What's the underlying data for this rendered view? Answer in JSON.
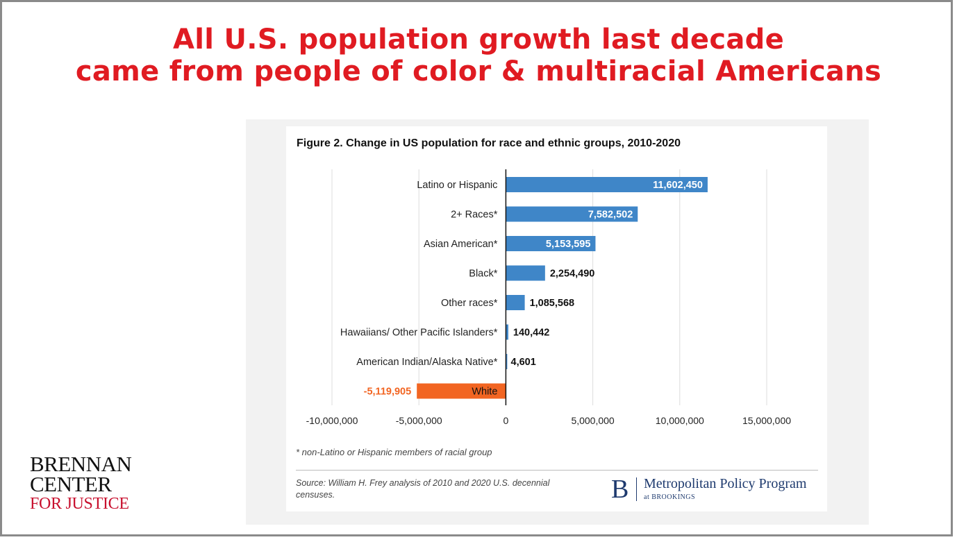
{
  "slide": {
    "headline_line1": "All U.S. population growth last decade",
    "headline_line2": "came from people of color & multiracial Americans"
  },
  "figure": {
    "title": "Figure 2. Change in US population for race and ethnic groups, 2010-2020",
    "footnote": "* non-Latino or Hispanic members of racial group",
    "source": "Source: William H. Frey analysis of 2010 and 2020 U.S. decennial censuses."
  },
  "publisher_logo": {
    "letter": "B",
    "name": "Metropolitan Policy Program",
    "sub": "at BROOKINGS",
    "color": "#1e3a6e"
  },
  "brennan_logo": {
    "line1": "BRENNAN",
    "line2": "CENTER",
    "line3": "FOR JUSTICE",
    "accent_color": "#c8102e"
  },
  "colors": {
    "headline": "#e01b22",
    "positive_bar": "#3f86c8",
    "negative_bar": "#f26522",
    "negative_label": "#f26522"
  },
  "chart_data": {
    "type": "bar",
    "orientation": "horizontal",
    "title": "Figure 2. Change in US population for race and ethnic groups, 2010-2020",
    "categories": [
      "Latino or Hispanic",
      "2+ Races*",
      "Asian American*",
      "Black*",
      "Other races*",
      "Hawaiians/ Other Pacific Islanders*",
      "American Indian/Alaska Native*",
      "White"
    ],
    "values": [
      11602450,
      7582502,
      5153595,
      2254490,
      1085568,
      140442,
      4601,
      -5119905
    ],
    "value_labels": [
      "11,602,450",
      "7,582,502",
      "5,153,595",
      "2,254,490",
      "1,085,568",
      "140,442",
      "4,601",
      "-5,119,905"
    ],
    "xlim": [
      -10000000,
      15000000
    ],
    "x_ticks": [
      -10000000,
      -5000000,
      0,
      5000000,
      10000000,
      15000000
    ],
    "x_tick_labels": [
      "-10,000,000",
      "-5,000,000",
      "0",
      "5,000,000",
      "10,000,000",
      "15,000,000"
    ],
    "grid": true,
    "xlabel": "",
    "ylabel": ""
  }
}
